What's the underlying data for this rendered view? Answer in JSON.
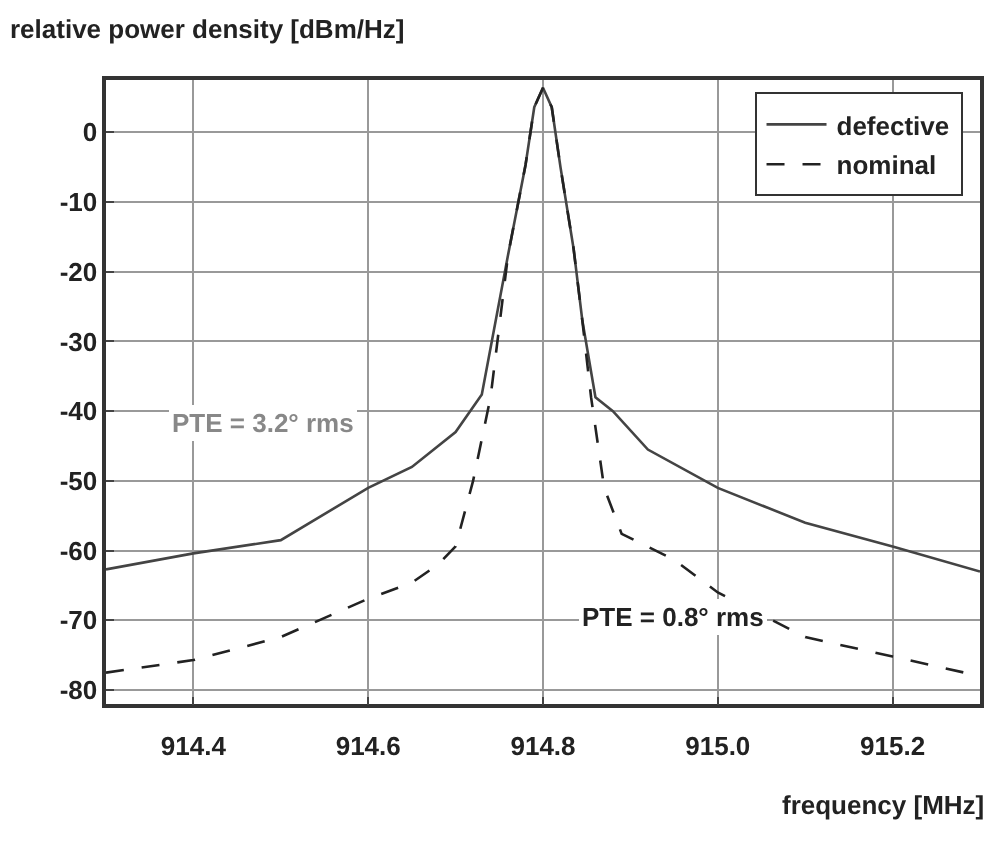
{
  "chart_data": {
    "type": "line",
    "xlabel": "frequency [MHz]",
    "ylabel": "relative power density [dBm/Hz]",
    "series": [
      {
        "name": "defective",
        "color": "#444444",
        "line_style": "solid",
        "x": [
          914.3,
          914.4,
          914.5,
          914.6,
          914.65,
          914.7,
          914.73,
          914.76,
          914.78,
          914.79,
          914.8,
          914.81,
          914.82,
          914.835,
          914.845,
          914.86,
          914.88,
          914.92,
          915.0,
          915.1,
          915.2,
          915.3
        ],
        "values": [
          -62.7,
          -60.4,
          -58.5,
          -51,
          -48,
          -43,
          -37.6,
          -17.6,
          -4.7,
          3.6,
          6.4,
          3.6,
          -5,
          -16.7,
          -27,
          -38,
          -40,
          -45.5,
          -51,
          -56,
          -59.4,
          -63
        ]
      },
      {
        "name": "nominal",
        "color": "#222222",
        "line_style": "dashed",
        "x": [
          914.3,
          914.4,
          914.5,
          914.6,
          914.65,
          914.68,
          914.7,
          914.72,
          914.74,
          914.76,
          914.78,
          914.79,
          914.8,
          914.81,
          914.82,
          914.835,
          914.845,
          914.855,
          914.87,
          914.89,
          914.95,
          915.0,
          915.1,
          915.2,
          915.3
        ],
        "values": [
          -77.5,
          -75.7,
          -72.4,
          -66.9,
          -64.6,
          -62,
          -59.4,
          -50,
          -38,
          -17.6,
          -4.7,
          3.6,
          6.4,
          3.6,
          -5,
          -16.7,
          -27,
          -38,
          -51,
          -57.6,
          -61.3,
          -66,
          -72.4,
          -75.2,
          -78
        ]
      }
    ],
    "annotations": [
      "PTE = 3.2° rms",
      "PTE = 0.8° rms"
    ],
    "xlim": [
      914.3,
      915.3
    ],
    "xticks": [
      {
        "value": 914.4,
        "label": "914.4"
      },
      {
        "value": 914.6,
        "label": "914.6"
      },
      {
        "value": 914.8,
        "label": "914.8"
      },
      {
        "value": 915.0,
        "label": "915.0"
      },
      {
        "value": 915.2,
        "label": "915.2"
      }
    ],
    "ylim": [
      -82,
      7.5
    ],
    "yticks": [
      0,
      -10,
      -20,
      -30,
      -40,
      -50,
      -60,
      -70,
      -80
    ],
    "grid": true,
    "legend": "top right",
    "marker": "none"
  }
}
